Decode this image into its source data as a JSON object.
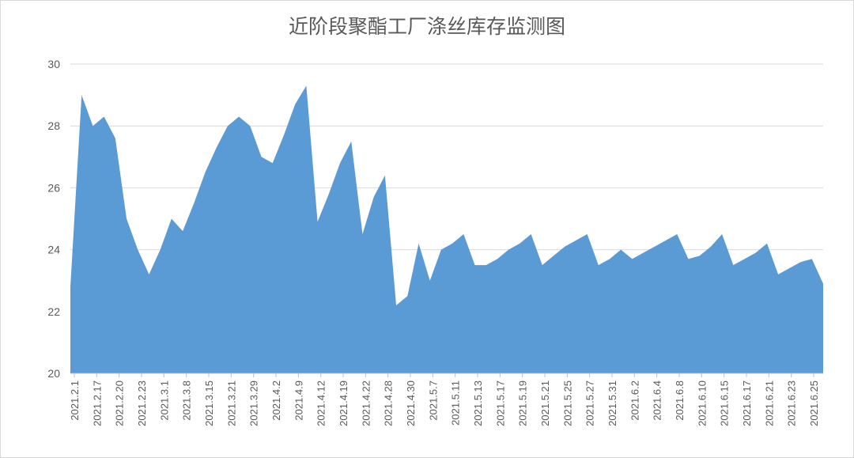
{
  "chart_data": {
    "type": "area",
    "title": "近阶段聚酯工厂涤丝库存监测图",
    "ylim": [
      20,
      30
    ],
    "yticks": [
      20,
      22,
      24,
      26,
      28,
      30
    ],
    "grid": true,
    "color": "#5b9bd5",
    "tick_labels": [
      "2021.2.1",
      "2021.2.17",
      "2021.2.20",
      "2021.2.23",
      "2021.3.1",
      "2021.3.8",
      "2021.3.15",
      "2021.3.21",
      "2021.3.29",
      "2021.4.2",
      "2021.4.9",
      "2021.4.12",
      "2021.4.19",
      "2021.4.22",
      "2021.4.28",
      "2021.4.30",
      "2021.5.7",
      "2021.5.11",
      "2021.5.13",
      "2021.5.17",
      "2021.5.19",
      "2021.5.21",
      "2021.5.25",
      "2021.5.27",
      "2021.5.31",
      "2021.6.2",
      "2021.6.4",
      "2021.6.8",
      "2021.6.10",
      "2021.6.15",
      "2021.6.17",
      "2021.6.21",
      "2021.6.23",
      "2021.6.25"
    ],
    "values": [
      22.8,
      29.0,
      28.0,
      28.3,
      27.6,
      25.0,
      24.0,
      23.2,
      24.0,
      25.0,
      24.6,
      25.5,
      26.5,
      27.3,
      28.0,
      28.3,
      28.0,
      27.0,
      26.8,
      27.7,
      28.7,
      29.3,
      24.9,
      25.8,
      26.8,
      27.5,
      24.5,
      25.7,
      26.4,
      22.2,
      22.5,
      24.2,
      23.0,
      24.0,
      24.2,
      24.5,
      23.5,
      23.5,
      23.7,
      24.0,
      24.2,
      24.5,
      23.5,
      23.8,
      24.1,
      24.3,
      24.5,
      23.5,
      23.7,
      24.0,
      23.7,
      23.9,
      24.1,
      24.3,
      24.5,
      23.7,
      23.8,
      24.1,
      24.5,
      23.5,
      23.7,
      23.9,
      24.2,
      23.2,
      23.4,
      23.6,
      23.7,
      22.9
    ]
  }
}
